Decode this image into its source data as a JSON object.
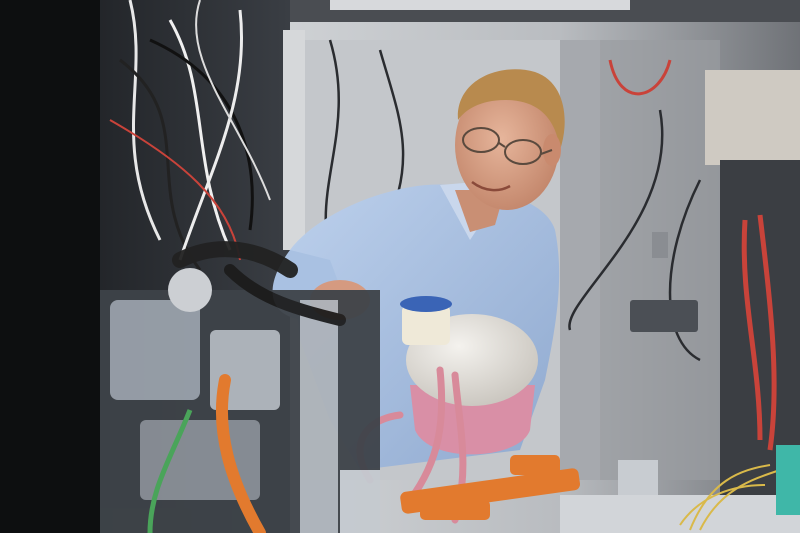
{
  "image": {
    "kind": "photograph",
    "subject": "scientist-at-lab-apparatus",
    "palette": {
      "wall": "#c9ccd0",
      "shadow": "#1c1f24",
      "shirt": "#a9c1e2",
      "skin": "#d9a48a",
      "hair": "#b88a4e",
      "tube_red": "#c9433a",
      "tube_pink": "#d88a9a",
      "tube_orange": "#e27a2e",
      "reservoir": "#e5e3df",
      "reservoir_pink": "#d98fa6",
      "cap_blue": "#3a64b6",
      "metal": "#9aa2ac",
      "wire_yellow": "#d9b94a",
      "teal": "#3fb7a8"
    }
  }
}
